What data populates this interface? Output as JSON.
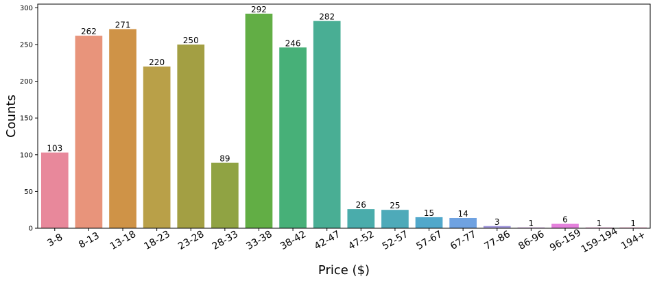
{
  "chart_data": {
    "type": "bar",
    "xlabel": "Price ($)",
    "ylabel": "Counts",
    "ylim": [
      0,
      305
    ],
    "yticks": [
      0,
      50,
      100,
      150,
      200,
      250,
      300
    ],
    "grid": false,
    "categories": [
      "3-8",
      "8-13",
      "13-18",
      "18-23",
      "23-28",
      "28-33",
      "33-38",
      "38-42",
      "42-47",
      "47-52",
      "52-57",
      "57-67",
      "67-77",
      "77-86",
      "86-96",
      "96-159",
      "159-194",
      "194+"
    ],
    "values": [
      103,
      262,
      271,
      220,
      250,
      89,
      292,
      246,
      282,
      26,
      25,
      15,
      14,
      3,
      1,
      6,
      1,
      1
    ],
    "data_labels": [
      "103",
      "262",
      "271",
      "220",
      "250",
      "89",
      "292",
      "246",
      "282",
      "26",
      "25",
      "15",
      "14",
      "3",
      "1",
      "6",
      "1",
      "1"
    ],
    "colors": [
      "#e8889b",
      "#e8947b",
      "#cf9347",
      "#b9a048",
      "#a39f43",
      "#90a343",
      "#62ae45",
      "#47b078",
      "#49ae94",
      "#4aacab",
      "#4eaab9",
      "#51a8cb",
      "#6fa2e1",
      "#a79ee0",
      "#c991de",
      "#e481dc",
      "#e887c6",
      "#eb8bb0"
    ]
  }
}
